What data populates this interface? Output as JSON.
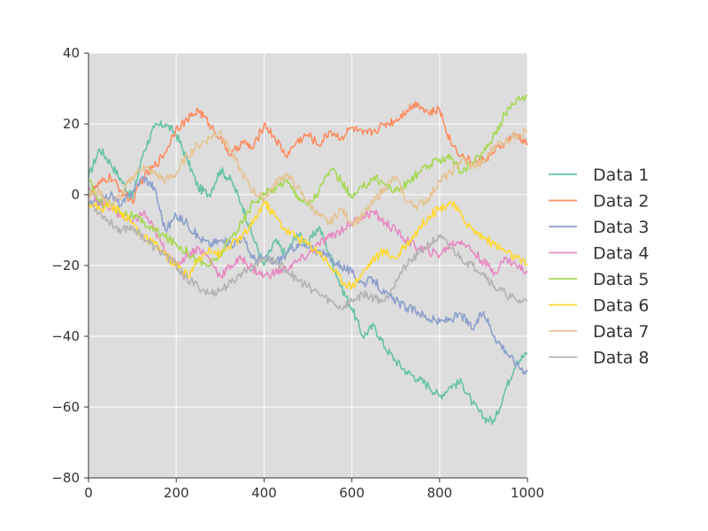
{
  "chart_data": {
    "type": "line",
    "title": "",
    "xlabel": "",
    "ylabel": "",
    "xlim": [
      0,
      1000
    ],
    "ylim": [
      -80,
      40
    ],
    "xticks": [
      0,
      200,
      400,
      600,
      800,
      1000
    ],
    "yticks": [
      -80,
      -60,
      -40,
      -20,
      0,
      20,
      40
    ],
    "xtick_labels": [
      "0",
      "200",
      "400",
      "600",
      "800",
      "1000"
    ],
    "ytick_labels": [
      "−80",
      "−60",
      "−40",
      "−20",
      "0",
      "20",
      "40"
    ],
    "grid": true,
    "legend_position": "right",
    "plot_background": "#dddddd",
    "grid_color": "#ffffff",
    "series": [
      {
        "name": "Data 1",
        "color": "#66c2a5",
        "x": [
          0,
          25,
          50,
          75,
          100,
          125,
          150,
          175,
          200,
          225,
          250,
          275,
          300,
          325,
          350,
          375,
          400,
          425,
          450,
          475,
          500,
          525,
          550,
          575,
          600,
          625,
          650,
          675,
          700,
          725,
          750,
          775,
          800,
          825,
          850,
          875,
          900,
          925,
          950,
          975,
          1000
        ],
        "y": [
          5,
          13,
          9,
          4,
          -1,
          12,
          19,
          20,
          17,
          10,
          2,
          0,
          7,
          4,
          -3,
          -12,
          -20,
          -13,
          -17,
          -11,
          -14,
          -9,
          -17,
          -26,
          -32,
          -40,
          -37,
          -43,
          -47,
          -50,
          -52,
          -54,
          -57,
          -54,
          -53,
          -59,
          -63,
          -64,
          -55,
          -47,
          -45
        ]
      },
      {
        "name": "Data 2",
        "color": "#fc8d62",
        "x": [
          0,
          25,
          50,
          75,
          100,
          125,
          150,
          175,
          200,
          225,
          250,
          275,
          300,
          325,
          350,
          375,
          400,
          425,
          450,
          475,
          500,
          525,
          550,
          575,
          600,
          625,
          650,
          675,
          700,
          725,
          750,
          775,
          800,
          825,
          850,
          875,
          900,
          925,
          950,
          975,
          1000
        ],
        "y": [
          0,
          3,
          5,
          1,
          -2,
          5,
          8,
          12,
          19,
          21,
          24,
          20,
          16,
          11,
          15,
          13,
          20,
          16,
          11,
          15,
          17,
          14,
          18,
          16,
          19,
          17,
          18,
          20,
          21,
          24,
          26,
          23,
          24,
          15,
          11,
          9,
          10,
          12,
          15,
          17,
          14
        ]
      },
      {
        "name": "Data 3",
        "color": "#8da0cb",
        "x": [
          0,
          25,
          50,
          75,
          100,
          125,
          150,
          175,
          200,
          225,
          250,
          275,
          300,
          325,
          350,
          375,
          400,
          425,
          450,
          475,
          500,
          525,
          550,
          575,
          600,
          625,
          650,
          675,
          700,
          725,
          750,
          775,
          800,
          825,
          850,
          875,
          900,
          925,
          950,
          975,
          1000
        ],
        "y": [
          -3,
          -2,
          0,
          -3,
          1,
          5,
          2,
          -10,
          -6,
          -8,
          -12,
          -14,
          -13,
          -14,
          -12,
          -18,
          -18,
          -19,
          -17,
          -14,
          -15,
          -16,
          -18,
          -20,
          -22,
          -25,
          -24,
          -28,
          -30,
          -32,
          -33,
          -35,
          -36,
          -35,
          -34,
          -38,
          -33,
          -40,
          -44,
          -48,
          -50
        ]
      },
      {
        "name": "Data 4",
        "color": "#e78ac3",
        "x": [
          0,
          25,
          50,
          75,
          100,
          125,
          150,
          175,
          200,
          225,
          250,
          275,
          300,
          325,
          350,
          375,
          400,
          425,
          450,
          475,
          500,
          525,
          550,
          575,
          600,
          625,
          650,
          675,
          700,
          725,
          750,
          775,
          800,
          825,
          850,
          875,
          900,
          925,
          950,
          975,
          1000
        ],
        "y": [
          2,
          -2,
          -4,
          -6,
          -8,
          -5,
          -10,
          -16,
          -20,
          -17,
          -15,
          -18,
          -23,
          -20,
          -18,
          -21,
          -23,
          -22,
          -21,
          -19,
          -17,
          -14,
          -12,
          -10,
          -8,
          -6,
          -5,
          -8,
          -10,
          -13,
          -15,
          -16,
          -17,
          -14,
          -13,
          -16,
          -19,
          -22,
          -18,
          -20,
          -22
        ]
      },
      {
        "name": "Data 5",
        "color": "#a6d854",
        "x": [
          0,
          25,
          50,
          75,
          100,
          125,
          150,
          175,
          200,
          225,
          250,
          275,
          300,
          325,
          350,
          375,
          400,
          425,
          450,
          475,
          500,
          525,
          550,
          575,
          600,
          625,
          650,
          675,
          700,
          725,
          750,
          775,
          800,
          825,
          850,
          875,
          900,
          925,
          950,
          975,
          1000
        ],
        "y": [
          4,
          -2,
          -3,
          -5,
          -6,
          -8,
          -10,
          -12,
          -14,
          -16,
          -19,
          -20,
          -17,
          -12,
          -8,
          -2,
          0,
          2,
          4,
          0,
          -3,
          1,
          7,
          4,
          -1,
          2,
          5,
          3,
          1,
          3,
          6,
          8,
          10,
          11,
          6,
          9,
          12,
          17,
          23,
          27,
          28
        ]
      },
      {
        "name": "Data 6",
        "color": "#ffd92f",
        "x": [
          0,
          25,
          50,
          75,
          100,
          125,
          150,
          175,
          200,
          225,
          250,
          275,
          300,
          325,
          350,
          375,
          400,
          425,
          450,
          475,
          500,
          525,
          550,
          575,
          600,
          625,
          650,
          675,
          700,
          725,
          750,
          775,
          800,
          825,
          850,
          875,
          900,
          925,
          950,
          975,
          1000
        ],
        "y": [
          -2,
          -4,
          -3,
          -5,
          -8,
          -12,
          -14,
          -17,
          -20,
          -23,
          -19,
          -15,
          -17,
          -14,
          -12,
          -8,
          -2,
          -6,
          -10,
          -12,
          -14,
          -16,
          -20,
          -24,
          -26,
          -22,
          -18,
          -16,
          -18,
          -14,
          -10,
          -6,
          -4,
          -2,
          -6,
          -10,
          -12,
          -14,
          -16,
          -18,
          -20
        ]
      },
      {
        "name": "Data 7",
        "color": "#e5c494",
        "x": [
          0,
          25,
          50,
          75,
          100,
          125,
          150,
          175,
          200,
          225,
          250,
          275,
          300,
          325,
          350,
          375,
          400,
          425,
          450,
          475,
          500,
          525,
          550,
          575,
          600,
          625,
          650,
          675,
          700,
          725,
          750,
          775,
          800,
          825,
          850,
          875,
          900,
          925,
          950,
          975,
          1000
        ],
        "y": [
          0,
          1,
          -3,
          0,
          5,
          8,
          6,
          4,
          6,
          11,
          14,
          16,
          18,
          12,
          6,
          1,
          -1,
          3,
          6,
          2,
          -2,
          -6,
          -8,
          -4,
          -8,
          -6,
          -2,
          2,
          5,
          -2,
          -3,
          -1,
          4,
          6,
          10,
          8,
          9,
          14,
          15,
          17,
          18
        ]
      },
      {
        "name": "Data 8",
        "color": "#b3b3b3",
        "x": [
          0,
          25,
          50,
          75,
          100,
          125,
          150,
          175,
          200,
          225,
          250,
          275,
          300,
          325,
          350,
          375,
          400,
          425,
          450,
          475,
          500,
          525,
          550,
          575,
          600,
          625,
          650,
          675,
          700,
          725,
          750,
          775,
          800,
          825,
          850,
          875,
          900,
          925,
          950,
          975,
          1000
        ],
        "y": [
          -2,
          -5,
          -8,
          -10,
          -9,
          -12,
          -15,
          -17,
          -20,
          -24,
          -26,
          -28,
          -27,
          -25,
          -22,
          -20,
          -18,
          -19,
          -21,
          -24,
          -26,
          -28,
          -30,
          -32,
          -30,
          -28,
          -29,
          -30,
          -24,
          -20,
          -17,
          -14,
          -12,
          -15,
          -18,
          -20,
          -22,
          -26,
          -28,
          -30,
          -30
        ]
      }
    ]
  }
}
